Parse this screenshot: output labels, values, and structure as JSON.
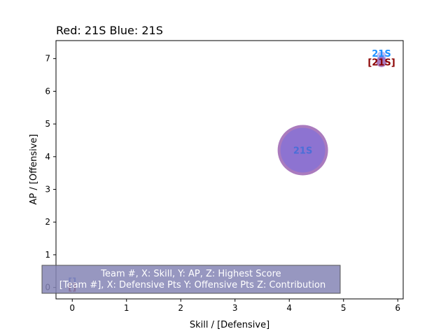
{
  "chart_data": {
    "type": "scatter",
    "title": "Red: 21S   Blue: 21S",
    "xlabel": "Skill / [Defensive]",
    "ylabel": "AP / [Offensive]",
    "xlim": [
      -0.3,
      6.1
    ],
    "ylim": [
      -0.35,
      7.55
    ],
    "xticks": [
      0,
      1,
      2,
      3,
      4,
      5,
      6
    ],
    "yticks": [
      0,
      1,
      2,
      3,
      4,
      5,
      6,
      7
    ],
    "grid": false,
    "series": [
      {
        "color": "#4169e1",
        "points": [
          {
            "x": 4.25,
            "y": 4.2,
            "size": 72,
            "label": "21S"
          },
          {
            "x": 5.7,
            "y": 7.08,
            "size": 15,
            "label": "21S"
          },
          {
            "x": 0,
            "y": 0.2,
            "size": 0,
            "label": "[]"
          }
        ]
      },
      {
        "color": "#8b0000",
        "points": [
          {
            "x": 4.25,
            "y": 4.2,
            "size": 72,
            "label": "21S"
          },
          {
            "x": 5.7,
            "y": 6.9,
            "size": 15,
            "label": "[21S]"
          },
          {
            "x": 0,
            "y": 0.0,
            "size": 0,
            "label": "[]"
          }
        ]
      }
    ],
    "legend_box": {
      "line1": "Team #, X: Skill, Y: AP, Z: Highest Score",
      "line2": "[Team #], X: Defensive Pts Y: Offensive Pts Z: Contribution"
    },
    "colors": {
      "blue_marker": "#6a6ae8",
      "red_marker": "#8e4fa8",
      "legend_bg": "#8585b5"
    }
  }
}
